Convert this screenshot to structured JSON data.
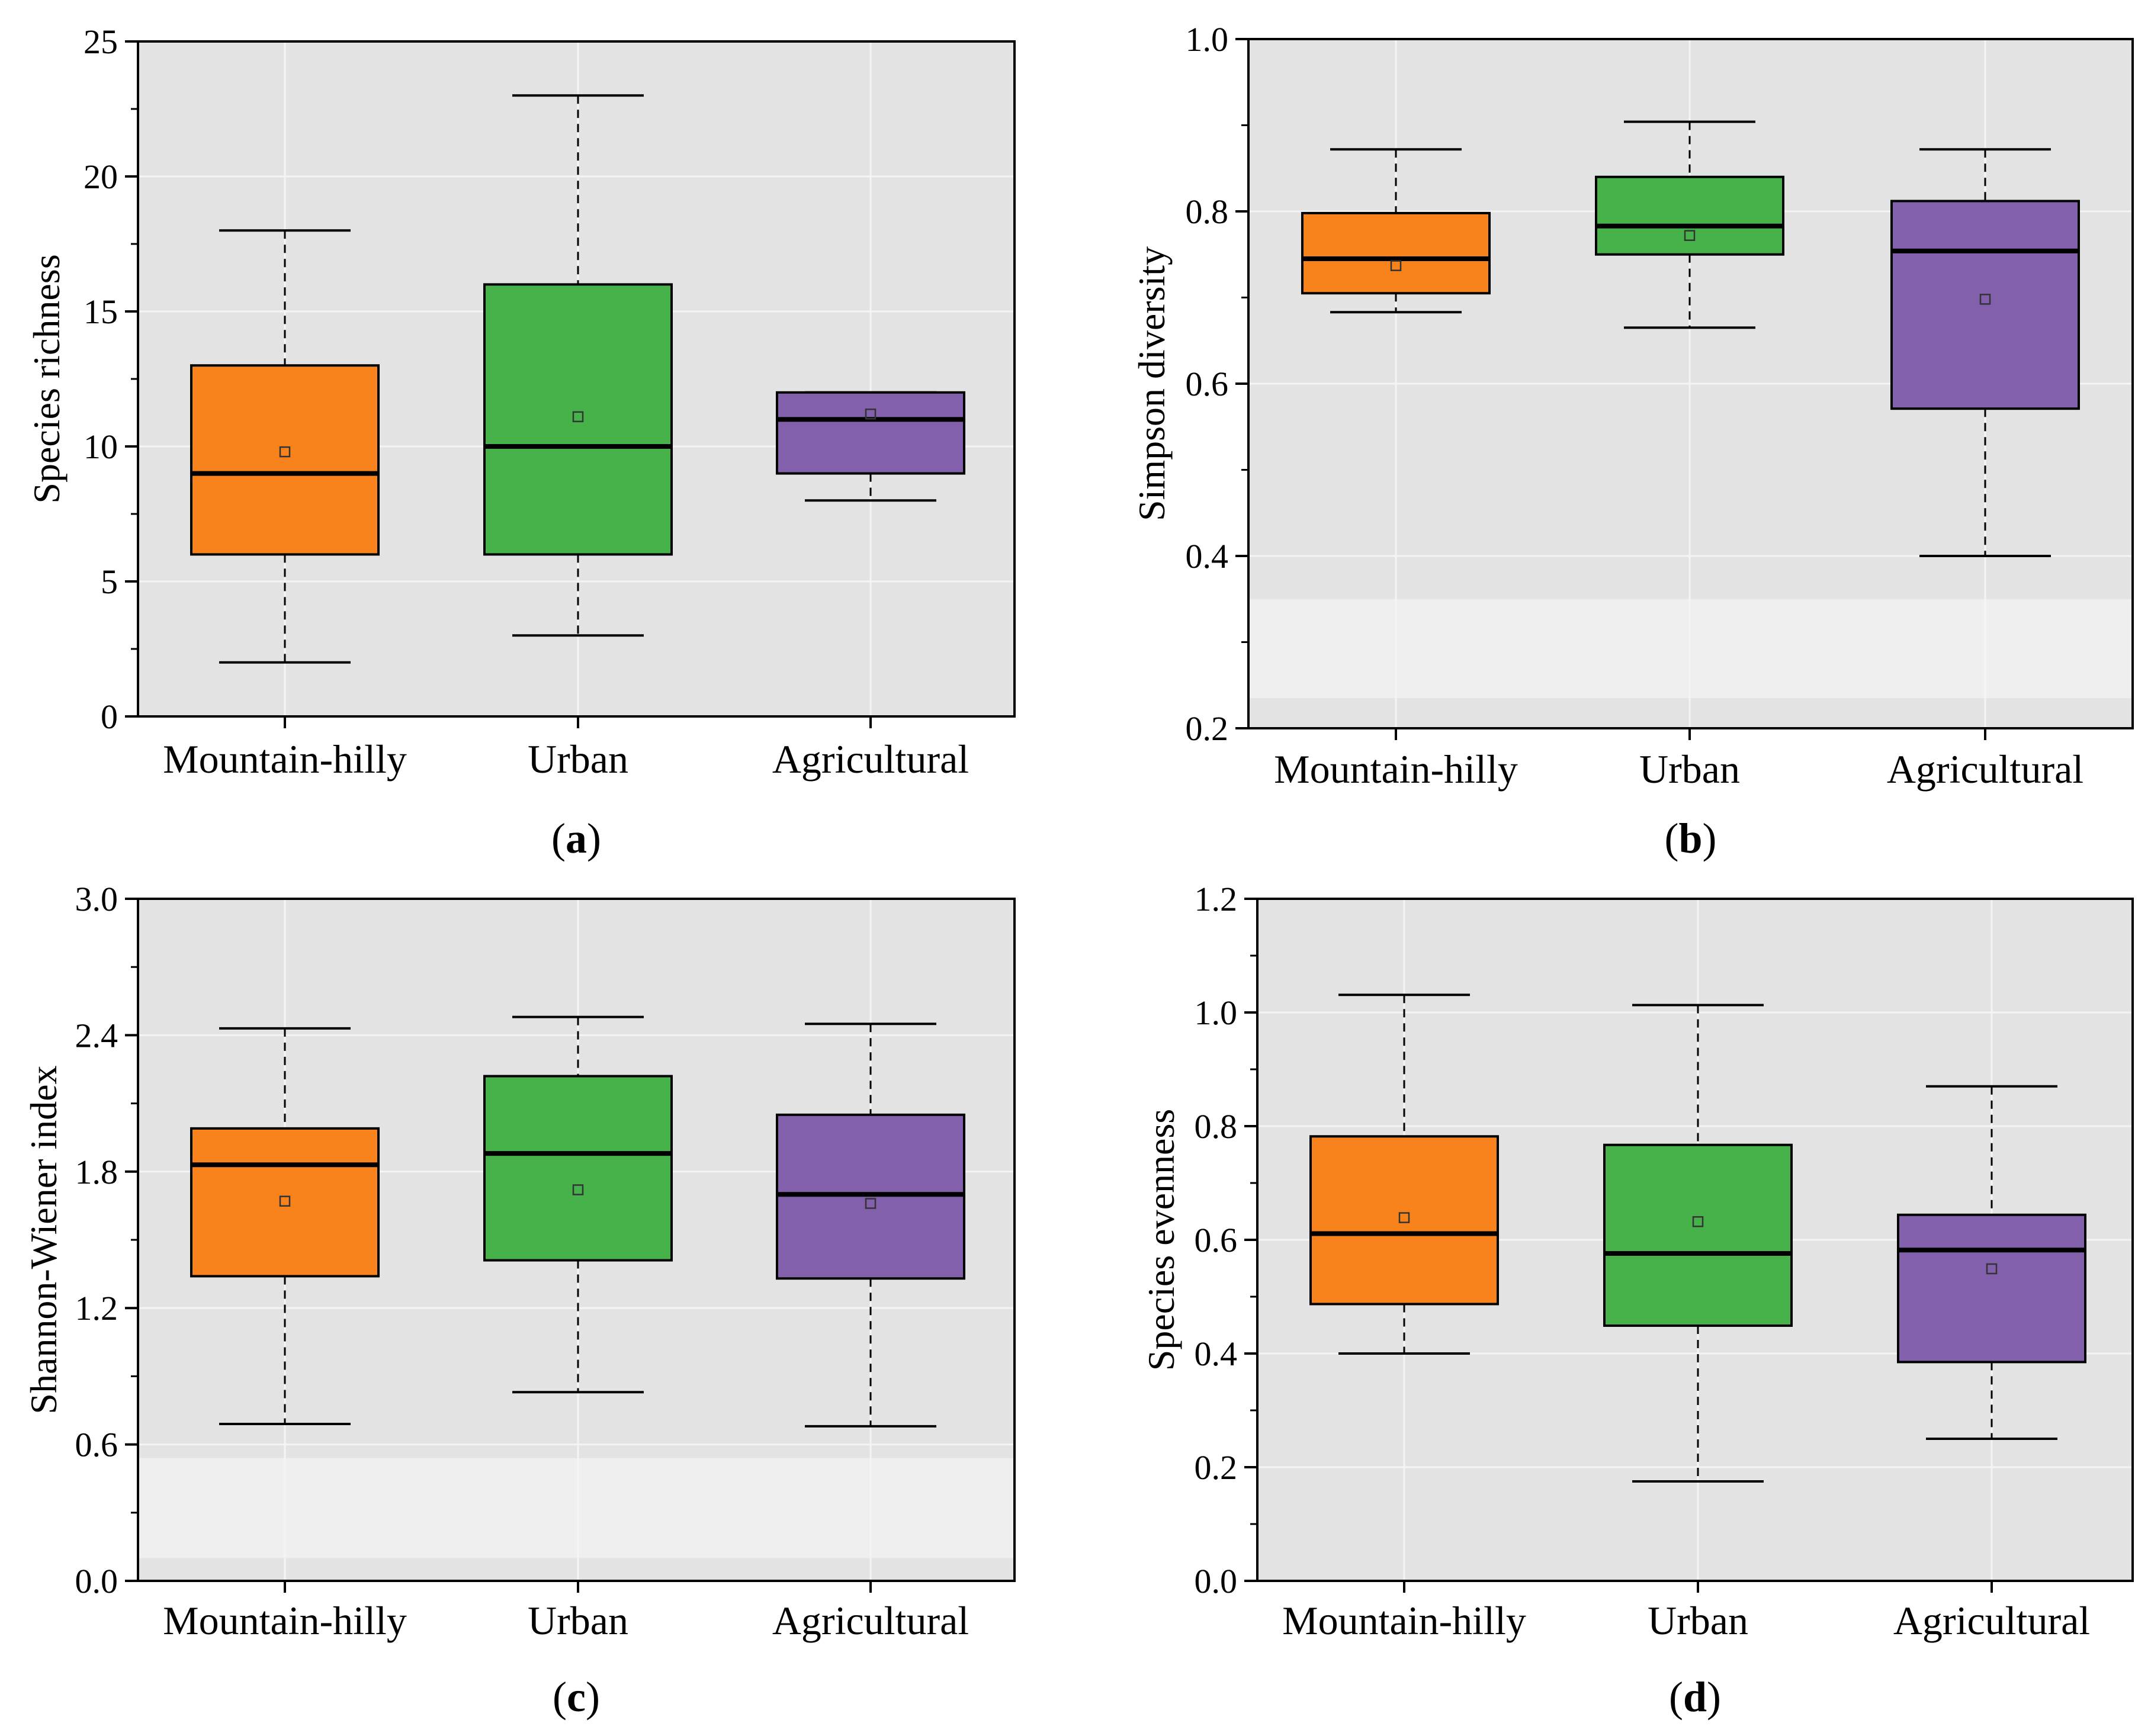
{
  "colors": {
    "plot_background": "#e3e3e3",
    "grid": "#f4f4f4",
    "light_band": "#efefef",
    "mountain_hilly": "#f8821c",
    "urban": "#47b24a",
    "agricultural": "#8360ab",
    "line": "#000000"
  },
  "chart_data": [
    {
      "id": "a",
      "type": "box",
      "panel_label": "a",
      "xlabel": "",
      "ylabel": "Species richness",
      "ylim": [
        0,
        25
      ],
      "yticks": [
        "0",
        "5",
        "10",
        "15",
        "20",
        "25"
      ],
      "ytick_values": [
        0,
        5,
        10,
        15,
        20,
        25
      ],
      "minor_ticks": true,
      "grid": true,
      "light_band": null,
      "categories": [
        "Mountain-hilly",
        "Urban",
        "Agricultural"
      ],
      "series": [
        {
          "name": "Mountain-hilly",
          "whisker_low": 2,
          "q1": 6,
          "median": 9,
          "q3": 13,
          "whisker_high": 18,
          "mean": 9.8
        },
        {
          "name": "Urban",
          "whisker_low": 3,
          "q1": 6,
          "median": 10,
          "q3": 16,
          "whisker_high": 23,
          "mean": 11.1
        },
        {
          "name": "Agricultural",
          "whisker_low": 8,
          "q1": 9,
          "median": 11,
          "q3": 12,
          "whisker_high": 12,
          "mean": 11.2
        }
      ]
    },
    {
      "id": "b",
      "type": "box",
      "panel_label": "b",
      "xlabel": "",
      "ylabel": "Simpson diversity",
      "ylim": [
        0.2,
        1.0
      ],
      "yticks": [
        "0.2",
        "0.4",
        "0.6",
        "0.8",
        "1.0"
      ],
      "ytick_values": [
        0.2,
        0.4,
        0.6,
        0.8,
        1.0
      ],
      "minor_ticks": true,
      "grid": true,
      "light_band": [
        0.235,
        0.35
      ],
      "categories": [
        "Mountain-hilly",
        "Urban",
        "Agricultural"
      ],
      "series": [
        {
          "name": "Mountain-hilly",
          "whisker_low": 0.683,
          "q1": 0.705,
          "median": 0.745,
          "q3": 0.798,
          "whisker_high": 0.872,
          "mean": 0.737
        },
        {
          "name": "Urban",
          "whisker_low": 0.665,
          "q1": 0.75,
          "median": 0.783,
          "q3": 0.84,
          "whisker_high": 0.904,
          "mean": 0.772
        },
        {
          "name": "Agricultural",
          "whisker_low": 0.4,
          "q1": 0.571,
          "median": 0.754,
          "q3": 0.812,
          "whisker_high": 0.872,
          "mean": 0.698
        }
      ]
    },
    {
      "id": "c",
      "type": "box",
      "panel_label": "c",
      "xlabel": "",
      "ylabel": "Shannon-Wiener index",
      "ylim": [
        0.0,
        3.0
      ],
      "yticks": [
        "0.0",
        "0.6",
        "1.2",
        "1.8",
        "2.4",
        "3.0"
      ],
      "ytick_values": [
        0.0,
        0.6,
        1.2,
        1.8,
        2.4,
        3.0
      ],
      "minor_ticks": true,
      "grid": true,
      "light_band": [
        0.1,
        0.54
      ],
      "categories": [
        "Mountain-hilly",
        "Urban",
        "Agricultural"
      ],
      "series": [
        {
          "name": "Mountain-hilly",
          "whisker_low": 0.69,
          "q1": 1.34,
          "median": 1.83,
          "q3": 1.99,
          "whisker_high": 2.43,
          "mean": 1.67
        },
        {
          "name": "Urban",
          "whisker_low": 0.83,
          "q1": 1.41,
          "median": 1.88,
          "q3": 2.22,
          "whisker_high": 2.48,
          "mean": 1.72
        },
        {
          "name": "Agricultural",
          "whisker_low": 0.68,
          "q1": 1.33,
          "median": 1.7,
          "q3": 2.05,
          "whisker_high": 2.45,
          "mean": 1.66
        }
      ]
    },
    {
      "id": "d",
      "type": "box",
      "panel_label": "d",
      "xlabel": "",
      "ylabel": "Species evenness",
      "ylim": [
        0.0,
        1.2
      ],
      "yticks": [
        "0.0",
        "0.2",
        "0.4",
        "0.6",
        "0.8",
        "1.0",
        "1.2"
      ],
      "ytick_values": [
        0.0,
        0.2,
        0.4,
        0.6,
        0.8,
        1.0,
        1.2
      ],
      "minor_ticks": true,
      "grid": true,
      "light_band": null,
      "categories": [
        "Mountain-hilly",
        "Urban",
        "Agricultural"
      ],
      "series": [
        {
          "name": "Mountain-hilly",
          "whisker_low": 0.4,
          "q1": 0.487,
          "median": 0.611,
          "q3": 0.782,
          "whisker_high": 1.031,
          "mean": 0.639
        },
        {
          "name": "Urban",
          "whisker_low": 0.175,
          "q1": 0.449,
          "median": 0.576,
          "q3": 0.767,
          "whisker_high": 1.013,
          "mean": 0.632
        },
        {
          "name": "Agricultural",
          "whisker_low": 0.25,
          "q1": 0.385,
          "median": 0.582,
          "q3": 0.644,
          "whisker_high": 0.87,
          "mean": 0.549
        }
      ]
    }
  ]
}
